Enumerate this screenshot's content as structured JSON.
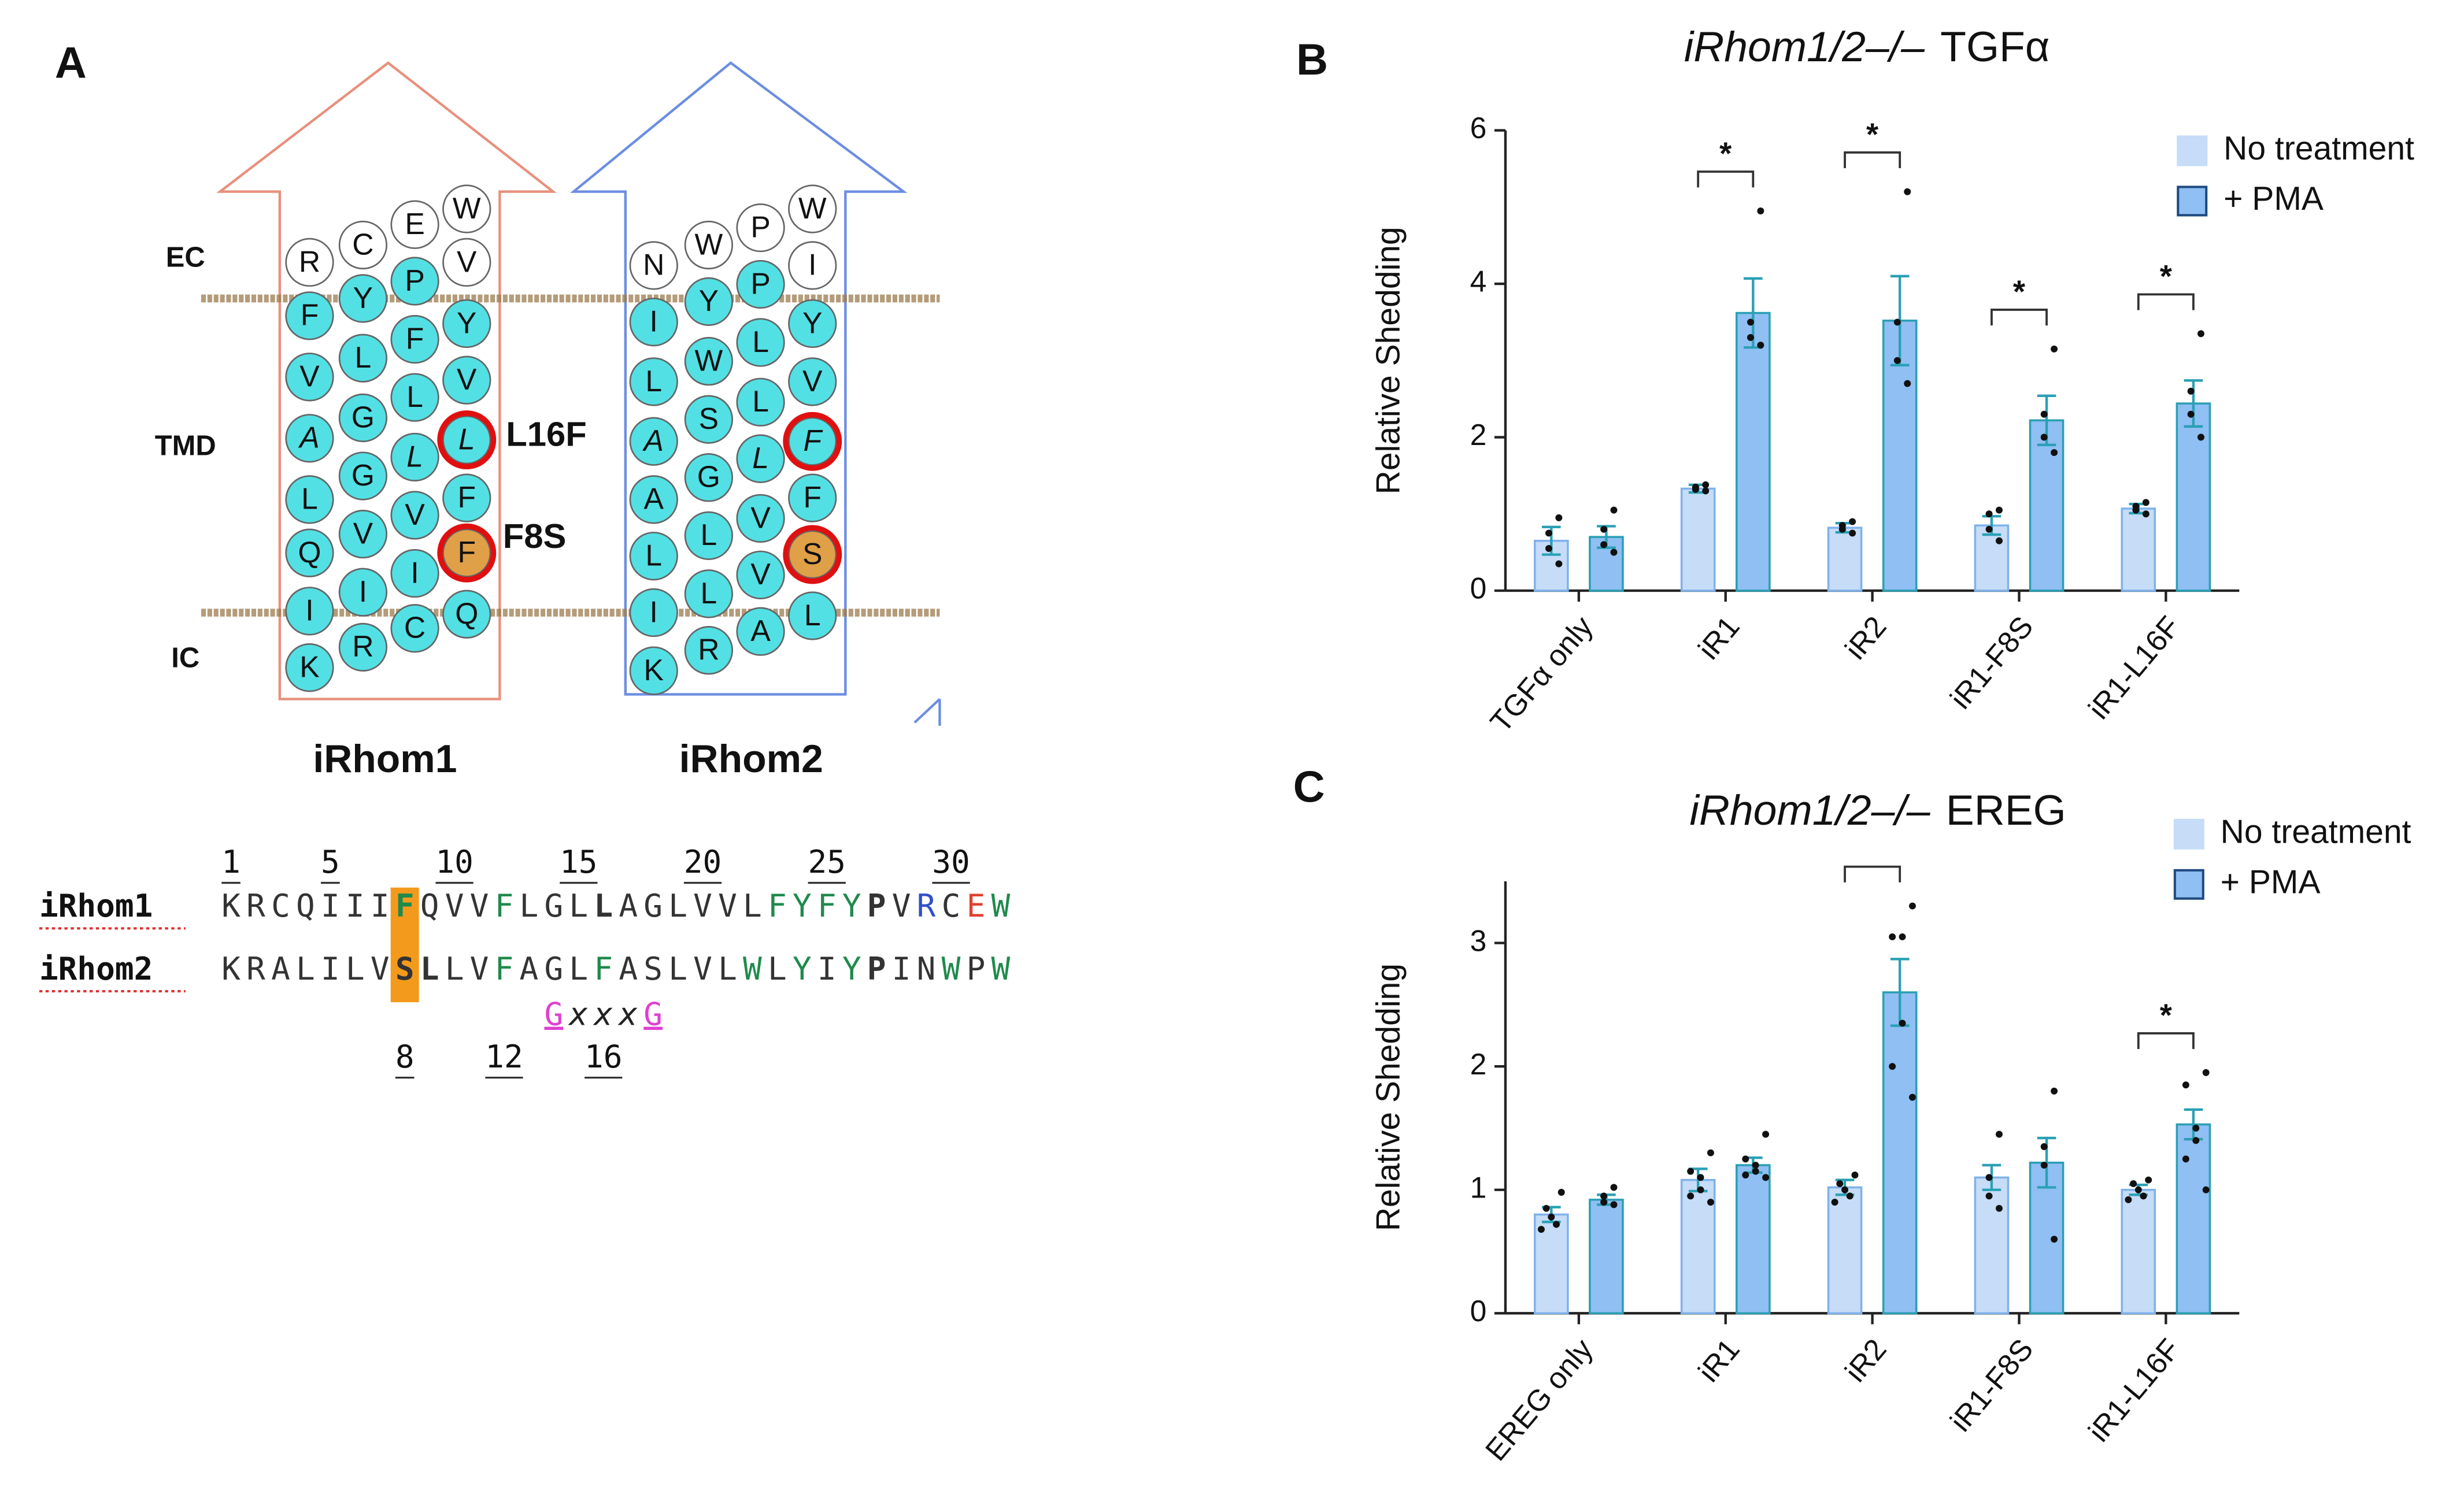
{
  "panel_a": {
    "label": "A",
    "regions": [
      "EC",
      "TMD",
      "IC"
    ],
    "proteins": [
      {
        "name": "iRhom1",
        "residues": [
          "R",
          "F",
          "V",
          "A",
          "L",
          "Q",
          "I",
          "K",
          "C",
          "Y",
          "L",
          "G",
          "G",
          "V",
          "I",
          "R",
          "E",
          "P",
          "F",
          "L",
          "L",
          "V",
          "I",
          "C",
          "W",
          "V",
          "Y",
          "V",
          "L",
          "F",
          "F",
          "Q"
        ]
      },
      {
        "name": "iRhom2",
        "residues": [
          "N",
          "I",
          "L",
          "A",
          "A",
          "L",
          "I",
          "K",
          "W",
          "Y",
          "W",
          "S",
          "G",
          "L",
          "L",
          "R",
          "P",
          "P",
          "L",
          "L",
          "L",
          "V",
          "V",
          "A",
          "W",
          "I",
          "Y",
          "V",
          "F",
          "F",
          "S",
          "L"
        ]
      }
    ],
    "mutations": [
      "L16F",
      "F8S"
    ],
    "alignment": {
      "positions_top": [
        1,
        5,
        10,
        15,
        20,
        25,
        30
      ],
      "sequences": [
        {
          "name": "iRhom1",
          "sequence": "KRCQIIIFQVVFLGLLAGLVVLFYFYPVRCEW"
        },
        {
          "name": "iRhom2",
          "sequence": "KRALILVSLLVFAGLFASLVLWLYIYPINWPW"
        }
      ],
      "motif": "GxxxG",
      "positions_bottom": [
        8,
        12,
        16
      ]
    }
  },
  "chart_data": [
    {
      "type": "bar",
      "label": "B",
      "title_italic": "iRhom1/2–/–",
      "title": "TGFα",
      "ylabel": "Relative Shedding",
      "categories": [
        "TGFα only",
        "iR1",
        "iR2",
        "iR1-F8S",
        "iR1-L16F"
      ],
      "ylim": [
        0,
        6
      ],
      "yticks": [
        0,
        2,
        4,
        6
      ],
      "legend": "top-right",
      "series": [
        {
          "name": "No treatment",
          "color": "#c6dcf7",
          "edge": "#7fb2ea",
          "values": [
            0.65,
            1.33,
            0.82,
            0.85,
            1.07
          ],
          "errors": [
            0.18,
            0.05,
            0.06,
            0.12,
            0.06
          ],
          "points": [
            [
              0.95,
              0.75,
              0.55,
              0.35
            ],
            [
              1.38,
              1.35,
              1.32,
              1.3
            ],
            [
              0.9,
              0.85,
              0.8,
              0.75
            ],
            [
              1.05,
              1.0,
              0.8,
              0.65
            ],
            [
              1.15,
              1.1,
              1.05,
              1.0
            ]
          ]
        },
        {
          "name": "+ PMA",
          "color": "#8fbff3",
          "edge": "#2a9fb4",
          "values": [
            0.7,
            3.62,
            3.52,
            2.22,
            2.44
          ],
          "errors": [
            0.14,
            0.45,
            0.58,
            0.32,
            0.3
          ],
          "points": [
            [
              1.05,
              0.8,
              0.6,
              0.5
            ],
            [
              4.95,
              3.5,
              3.3,
              3.2
            ],
            [
              5.2,
              3.5,
              3.0,
              2.7
            ],
            [
              3.15,
              2.3,
              2.0,
              1.8
            ],
            [
              3.35,
              2.6,
              2.3,
              2.0
            ]
          ]
        }
      ],
      "brackets": [
        {
          "at": 1,
          "label": "*"
        },
        {
          "at": 2,
          "label": "*"
        },
        {
          "at": 3,
          "label": "*"
        },
        {
          "at": 4,
          "label": "*"
        }
      ]
    },
    {
      "type": "bar",
      "label": "C",
      "title_italic": "iRhom1/2–/–",
      "title": "EREG",
      "ylabel": "Relative Shedding",
      "categories": [
        "EREG only",
        "iR1",
        "iR2",
        "iR1-F8S",
        "iR1-L16F"
      ],
      "ylim": [
        0,
        3.5
      ],
      "yticks": [
        0,
        1,
        2,
        3
      ],
      "legend": "top-right",
      "series": [
        {
          "name": "No treatment",
          "color": "#c6dcf7",
          "edge": "#7fb2ea",
          "values": [
            0.8,
            1.08,
            1.02,
            1.1,
            1.0
          ],
          "errors": [
            0.06,
            0.09,
            0.06,
            0.1,
            0.04
          ],
          "points": [
            [
              0.98,
              0.85,
              0.78,
              0.72,
              0.68
            ],
            [
              1.3,
              1.15,
              1.1,
              1.0,
              0.95,
              0.9
            ],
            [
              1.12,
              1.05,
              1.0,
              0.95,
              0.9
            ],
            [
              1.45,
              1.1,
              0.95,
              0.85
            ],
            [
              1.08,
              1.05,
              1.0,
              0.95,
              0.92
            ]
          ]
        },
        {
          "name": "+ PMA",
          "color": "#8fbff3",
          "edge": "#2a9fb4",
          "values": [
            0.92,
            1.2,
            2.6,
            1.22,
            1.53
          ],
          "errors": [
            0.04,
            0.06,
            0.27,
            0.2,
            0.12
          ],
          "points": [
            [
              1.02,
              0.95,
              0.9,
              0.88
            ],
            [
              1.45,
              1.25,
              1.2,
              1.15,
              1.12,
              1.1
            ],
            [
              3.3,
              3.05,
              3.05,
              2.35,
              2.0,
              1.75
            ],
            [
              1.8,
              1.35,
              1.2,
              0.6
            ],
            [
              1.95,
              1.85,
              1.5,
              1.4,
              1.25,
              1.0
            ]
          ]
        }
      ],
      "brackets": [
        {
          "at": 2
        },
        {
          "at": 4,
          "label": "*"
        }
      ]
    }
  ]
}
